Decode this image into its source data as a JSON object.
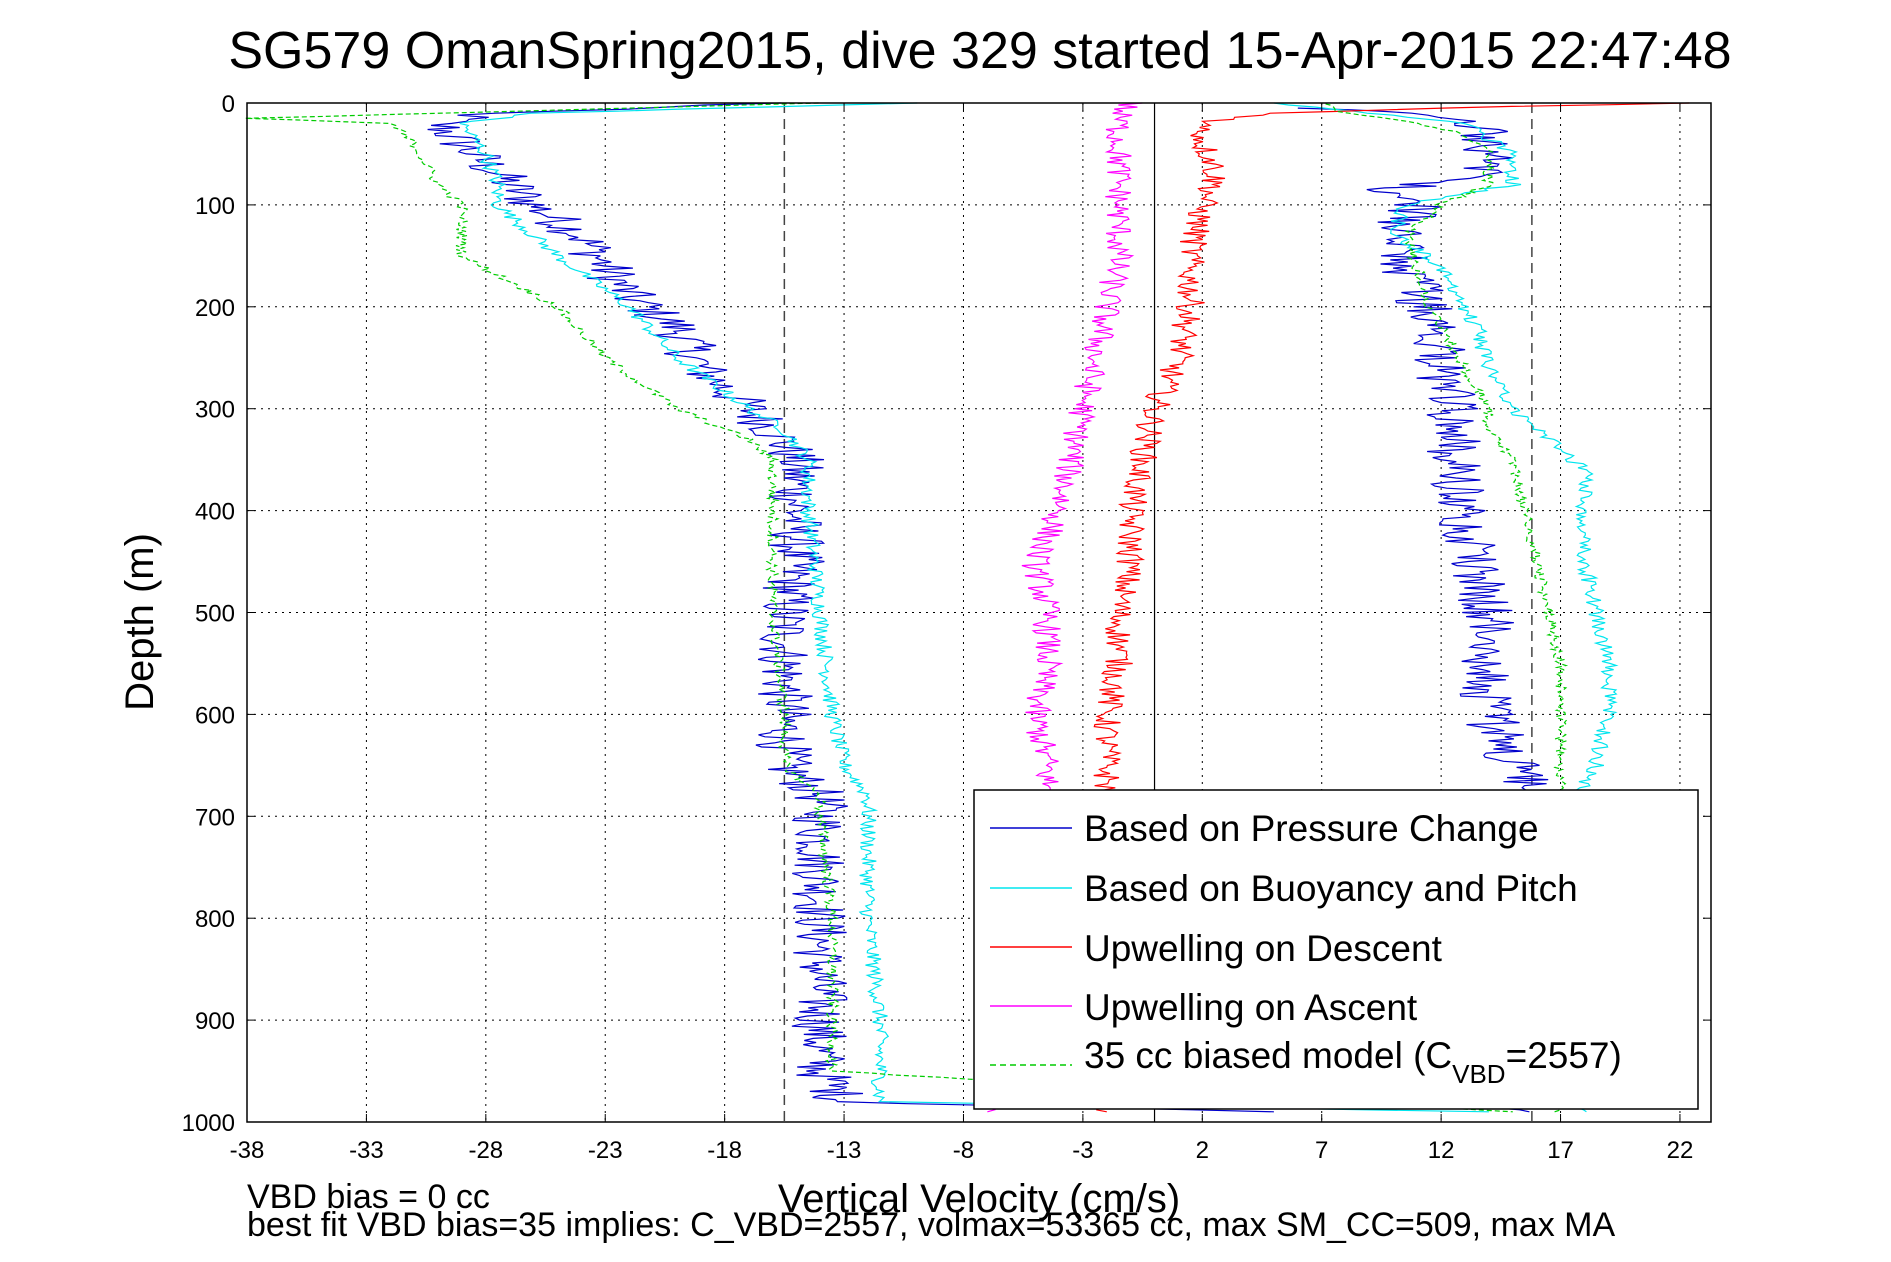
{
  "chart_data": {
    "type": "line",
    "title": "SG579 OmanSpring2015, dive 329 started 15-Apr-2015 22:47:48",
    "xlabel": "Vertical Velocity (cm/s)",
    "ylabel": "Depth (m)",
    "xlim": [
      -38,
      23.3
    ],
    "ylim": [
      0,
      1000
    ],
    "y_reversed": true,
    "x_ticks": [
      -38,
      -33,
      -28,
      -23,
      -18,
      -13,
      -8,
      -3,
      2,
      7,
      12,
      17,
      22
    ],
    "y_ticks": [
      0,
      100,
      200,
      300,
      400,
      500,
      600,
      700,
      800,
      900,
      1000
    ],
    "grid": true,
    "legend_position": "bottom-right",
    "reference_lines": {
      "solid_vertical_x": 0,
      "dashed_vertical_x": [
        -15.5,
        15.8
      ]
    },
    "series": [
      {
        "name": "Based on Pressure Change",
        "color": "#0000cc",
        "style": "solid",
        "branches": [
          {
            "depth": [
              0,
              10,
              20,
              40,
              60,
              80,
              100,
              130,
              160,
              190,
              220,
              260,
              300,
              320,
              350,
              400,
              450,
              500,
              550,
              600,
              650,
              680,
              700,
              750,
              800,
              850,
              900,
              950,
              980,
              990
            ],
            "velocity": [
              -16,
              -28,
              -30,
              -29,
              -28,
              -27,
              -26,
              -24,
              -23,
              -22,
              -20,
              -19,
              -17,
              -16,
              -15,
              -15,
              -15,
              -15.5,
              -15.5,
              -15.5,
              -15.5,
              -14,
              -14,
              -14,
              -14,
              -14,
              -14,
              -14,
              -13,
              5
            ]
          },
          {
            "depth": [
              990,
              980,
              950,
              900,
              800,
              700,
              680,
              650,
              600,
              550,
              500,
              450,
              400,
              350,
              320,
              300,
              260,
              220,
              200,
              190,
              160,
              130,
              115,
              100,
              85,
              80,
              70,
              50,
              30,
              20,
              10,
              5
            ],
            "velocity": [
              15,
              16,
              16,
              16,
              16,
              16,
              16,
              15,
              14,
              14,
              14,
              13.5,
              13,
              12.5,
              12.5,
              12.5,
              12,
              12,
              11.5,
              11,
              10.5,
              10,
              10.5,
              11,
              10,
              11,
              14,
              14,
              14,
              13,
              11,
              6
            ]
          }
        ]
      },
      {
        "name": "Based on Buoyancy and Pitch",
        "color": "#00e5ee",
        "style": "solid",
        "branches": [
          {
            "depth": [
              0,
              10,
              20,
              50,
              80,
              100,
              150,
              200,
              250,
              300,
              320,
              350,
              400,
              500,
              600,
              650,
              680,
              700,
              800,
              900,
              950,
              980,
              990
            ],
            "velocity": [
              -10,
              -26,
              -29,
              -28,
              -27.5,
              -27.5,
              -25,
              -22,
              -20,
              -17,
              -15.5,
              -14.5,
              -14.5,
              -14,
              -13.5,
              -13,
              -12,
              -12,
              -12,
              -11.5,
              -11.5,
              -11.5,
              14
            ]
          },
          {
            "depth": [
              990,
              960,
              900,
              800,
              700,
              650,
              600,
              550,
              500,
              450,
              400,
              360,
              320,
              300,
              260,
              220,
              200,
              160,
              130,
              100,
              80,
              50,
              20,
              10,
              0
            ],
            "velocity": [
              18,
              17,
              17,
              17,
              17,
              18.5,
              19,
              19,
              18.5,
              18,
              18,
              18,
              16,
              15,
              14,
              13.5,
              13,
              12,
              10,
              10.5,
              15,
              15,
              13,
              9,
              5
            ]
          }
        ]
      },
      {
        "name": "Upwelling on Descent",
        "color": "#ff0000",
        "style": "solid",
        "branches": [
          {
            "depth": [
              0,
              5,
              10,
              20,
              40,
              60,
              80,
              100,
              150,
              200,
              250,
              300,
              350,
              400,
              450,
              500,
              550,
              600,
              650,
              700,
              750,
              800,
              850,
              900,
              950,
              990
            ],
            "velocity": [
              22,
              12,
              5,
              2,
              2,
              2.5,
              2.5,
              2,
              1.5,
              1.5,
              1,
              0,
              -0.5,
              -1,
              -1,
              -1.5,
              -1.5,
              -2,
              -2,
              -2,
              -2,
              -2,
              -2,
              -2,
              -2,
              -2
            ]
          }
        ]
      },
      {
        "name": "Upwelling on Ascent",
        "color": "#ff00ff",
        "style": "solid",
        "branches": [
          {
            "depth": [
              0,
              10,
              50,
              100,
              150,
              200,
              250,
              300,
              350,
              400,
              450,
              500,
              550,
              600,
              650,
              700,
              750,
              800,
              850,
              900,
              950,
              990
            ],
            "velocity": [
              -1,
              -1.5,
              -1.5,
              -1.5,
              -1.5,
              -2,
              -2.5,
              -3,
              -3.5,
              -4,
              -5,
              -4.5,
              -4.5,
              -5,
              -4.5,
              -4.5,
              -4.5,
              -4.5,
              -4.5,
              -4.5,
              -4.5,
              -7
            ]
          }
        ]
      },
      {
        "name": "35 cc biased model (C_VBD=2557)",
        "color": "#00cc00",
        "style": "dashed",
        "branches": [
          {
            "depth": [
              0,
              15,
              20,
              40,
              80,
              100,
              150,
              200,
              250,
              300,
              330,
              350,
              400,
              500,
              600,
              650,
              680,
              700,
              800,
              900,
              950,
              990
            ],
            "velocity": [
              -14,
              -38,
              -32,
              -31,
              -30,
              -29,
              -29,
              -25,
              -23,
              -20,
              -17,
              -16,
              -16,
              -16,
              -15.5,
              -15.5,
              -14,
              -14,
              -13.5,
              -13.5,
              -13.5,
              15
            ]
          },
          {
            "depth": [
              990,
              960,
              900,
              800,
              700,
              650,
              600,
              550,
              500,
              450,
              400,
              350,
              320,
              300,
              260,
              220,
              200,
              160,
              130,
              100,
              80,
              50,
              30,
              20,
              10,
              0
            ],
            "velocity": [
              17,
              17,
              17,
              17,
              17,
              17,
              17,
              17,
              16.5,
              16,
              15.5,
              15,
              14,
              14,
              13,
              12,
              11.5,
              11,
              10.5,
              12,
              14,
              14,
              13,
              11,
              8,
              7
            ]
          }
        ]
      }
    ]
  },
  "legend": {
    "items": [
      {
        "label": "Based on Pressure Change"
      },
      {
        "label": "Based on Buoyancy and Pitch"
      },
      {
        "label": "Upwelling on Descent"
      },
      {
        "label": "Upwelling on Ascent"
      }
    ],
    "model_label_main": "35 cc biased model (C",
    "model_label_sub": "VBD",
    "model_label_tail": "=2557)"
  },
  "footer": {
    "line1": "VBD bias = 0 cc",
    "line2": "best fit VBD bias=35 implies: C_VBD=2557, volmax=53365 cc, max SM_CC=509, max MA"
  }
}
